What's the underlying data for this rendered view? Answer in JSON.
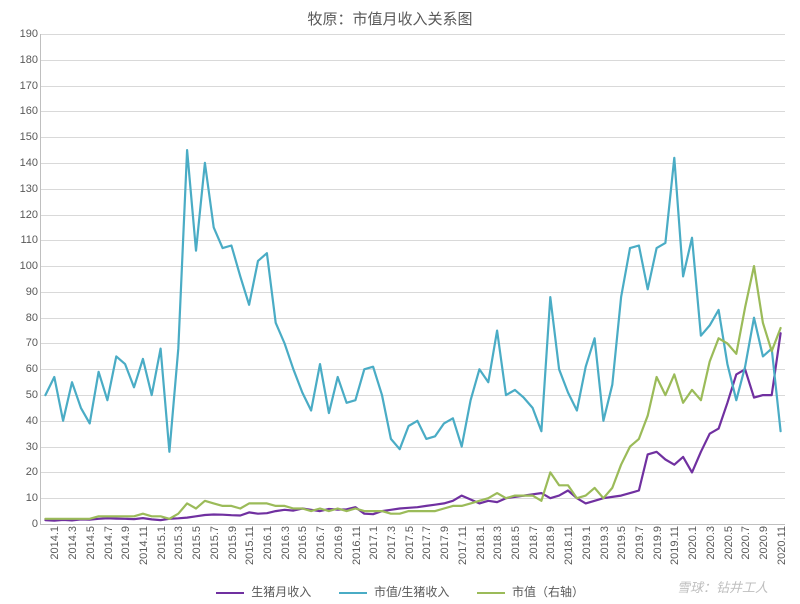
{
  "chart": {
    "type": "line",
    "title": "牧原：市值月收入关系图",
    "title_fontsize": 15,
    "title_color": "#595959",
    "background_color": "#ffffff",
    "grid_color": "#d9d9d9",
    "axis_color": "#bfbfbf",
    "tick_font_color": "#595959",
    "tick_fontsize": 11,
    "line_width": 2.2,
    "y_axis": {
      "min": 0,
      "max": 190,
      "tick_step": 10,
      "ticks": [
        0,
        10,
        20,
        30,
        40,
        50,
        60,
        70,
        80,
        90,
        100,
        110,
        120,
        130,
        140,
        150,
        160,
        170,
        180,
        190
      ]
    },
    "x_axis": {
      "labels_shown": [
        "2014.1",
        "2014.3",
        "2014.5",
        "2014.7",
        "2014.9",
        "2014.11",
        "2015.1",
        "2015.3",
        "2015.5",
        "2015.7",
        "2015.9",
        "2015.11",
        "2016.1",
        "2016.3",
        "2016.5",
        "2016.7",
        "2016.9",
        "2016.11",
        "2017.1",
        "2017.3",
        "2017.5",
        "2017.7",
        "2017.9",
        "2017.11",
        "2018.1",
        "2018.3",
        "2018.5",
        "2018.7",
        "2018.9",
        "2018.11",
        "2019.1",
        "2019.3",
        "2019.5",
        "2019.7",
        "2019.9",
        "2019.11",
        "2020.1",
        "2020.3",
        "2020.5",
        "2020.7",
        "2020.9",
        "2020.11"
      ],
      "label_step": 2,
      "label_rotation_deg": -90,
      "categories": [
        "2014.1",
        "2014.2",
        "2014.3",
        "2014.4",
        "2014.5",
        "2014.6",
        "2014.7",
        "2014.8",
        "2014.9",
        "2014.10",
        "2014.11",
        "2014.12",
        "2015.1",
        "2015.2",
        "2015.3",
        "2015.4",
        "2015.5",
        "2015.6",
        "2015.7",
        "2015.8",
        "2015.9",
        "2015.10",
        "2015.11",
        "2015.12",
        "2016.1",
        "2016.2",
        "2016.3",
        "2016.4",
        "2016.5",
        "2016.6",
        "2016.7",
        "2016.8",
        "2016.9",
        "2016.10",
        "2016.11",
        "2016.12",
        "2017.1",
        "2017.2",
        "2017.3",
        "2017.4",
        "2017.5",
        "2017.6",
        "2017.7",
        "2017.8",
        "2017.9",
        "2017.10",
        "2017.11",
        "2017.12",
        "2018.1",
        "2018.2",
        "2018.3",
        "2018.4",
        "2018.5",
        "2018.6",
        "2018.7",
        "2018.8",
        "2018.9",
        "2018.10",
        "2018.11",
        "2018.12",
        "2019.1",
        "2019.2",
        "2019.3",
        "2019.4",
        "2019.5",
        "2019.6",
        "2019.7",
        "2019.8",
        "2019.9",
        "2019.10",
        "2019.11",
        "2019.12",
        "2020.1",
        "2020.2",
        "2020.3",
        "2020.4",
        "2020.5",
        "2020.6",
        "2020.7",
        "2020.8",
        "2020.9",
        "2020.10",
        "2020.11",
        "2020.12"
      ]
    },
    "series": [
      {
        "id": "pig_monthly_revenue",
        "label": "生猪月收入",
        "color": "#7030a0",
        "values": [
          1.5,
          1.3,
          1.6,
          1.4,
          1.8,
          1.7,
          2.0,
          2.2,
          2.1,
          2.0,
          1.9,
          2.3,
          1.8,
          1.5,
          2.0,
          2.2,
          2.5,
          3.0,
          3.5,
          3.7,
          3.6,
          3.4,
          3.3,
          4.5,
          4.0,
          4.2,
          5.0,
          5.5,
          5.2,
          6.0,
          5.5,
          5.0,
          5.8,
          5.6,
          5.7,
          6.5,
          4.0,
          3.8,
          5.0,
          5.5,
          6.0,
          6.3,
          6.5,
          7.0,
          7.5,
          8.0,
          9.0,
          11.0,
          9.5,
          8.0,
          9.0,
          8.5,
          10.0,
          10.5,
          11.0,
          11.5,
          12.0,
          10.0,
          11.0,
          13.0,
          10.0,
          8.0,
          9.0,
          10.0,
          10.5,
          11.0,
          12.0,
          13.0,
          27.0,
          28.0,
          25.0,
          23.0,
          26.0,
          20.0,
          28.0,
          35.0,
          37.0,
          47.0,
          58.0,
          60.0,
          49.0,
          50.0,
          50.0,
          74.0
        ]
      },
      {
        "id": "mcap_over_pig_revenue",
        "label": "市值/生猪收入",
        "color": "#4aacc5",
        "values": [
          50,
          57,
          40,
          55,
          45,
          39,
          59,
          48,
          65,
          62,
          53,
          64,
          50,
          68,
          28,
          68,
          145,
          106,
          140,
          115,
          107,
          108,
          96,
          85,
          102,
          105,
          78,
          70,
          60,
          51,
          44,
          62,
          43,
          57,
          47,
          48,
          60,
          61,
          50,
          33,
          29,
          38,
          40,
          33,
          34,
          39,
          41,
          30,
          48,
          60,
          55,
          75,
          50,
          52,
          49,
          45,
          36,
          88,
          60,
          51,
          44,
          61,
          72,
          40,
          54,
          88,
          107,
          108,
          91,
          107,
          109,
          142,
          96,
          111,
          73,
          77,
          83,
          62,
          48,
          61,
          80,
          65,
          68,
          36
        ]
      },
      {
        "id": "mcap_right_axis",
        "label": "市值（右轴）",
        "color": "#9bbb59",
        "values": [
          2,
          2,
          2,
          2,
          2,
          2,
          3,
          3,
          3,
          3,
          3,
          4,
          3,
          3,
          2,
          4,
          8,
          6,
          9,
          8,
          7,
          7,
          6,
          8,
          8,
          8,
          7,
          7,
          6,
          6,
          5,
          6,
          5,
          6,
          5,
          6,
          5,
          5,
          5,
          4,
          4,
          5,
          5,
          5,
          5,
          6,
          7,
          7,
          8,
          9,
          10,
          12,
          10,
          11,
          11,
          11,
          9,
          20,
          15,
          15,
          10,
          11,
          14,
          10,
          14,
          23,
          30,
          33,
          42,
          57,
          50,
          58,
          47,
          52,
          48,
          63,
          72,
          70,
          66,
          84,
          100,
          78,
          67,
          76
        ]
      }
    ],
    "legend": {
      "position": "bottom",
      "items": [
        "生猪月收入",
        "市值/生猪收入",
        "市值（右轴）"
      ],
      "fontsize": 12
    },
    "watermark": "雪球：钻井工人"
  }
}
